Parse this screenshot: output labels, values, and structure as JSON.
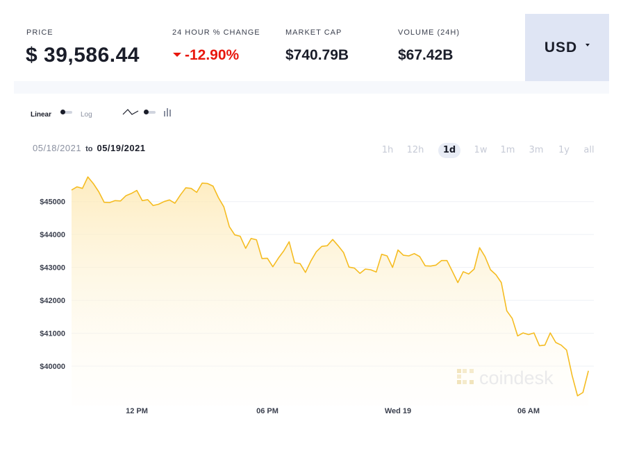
{
  "stats": {
    "price_label": "PRICE",
    "price_value": "$ 39,586.44",
    "change_label": "24 HOUR % CHANGE",
    "change_value": "-12.90%",
    "market_cap_label": "MARKET CAP",
    "market_cap_value": "$740.79B",
    "volume_label": "VOLUME (24H)",
    "volume_value": "$67.42B",
    "currency": "USD"
  },
  "toggles": {
    "scale_linear": "Linear",
    "scale_log": "Log",
    "chart_line_icon": "line-chart-icon",
    "chart_bar_icon": "bar-chart-icon"
  },
  "date_range": {
    "from": "05/18/2021",
    "to_word": "to",
    "to": "05/19/2021"
  },
  "periods": [
    "1h",
    "12h",
    "1d",
    "1w",
    "1m",
    "3m",
    "1y",
    "all"
  ],
  "active_period": "1d",
  "colors": {
    "accent": "#f5bc21",
    "negative": "#e8170d",
    "currency_bg": "#dfe5f4"
  },
  "watermark": "coindesk",
  "chart_data": {
    "type": "area",
    "title": "",
    "xlabel": "",
    "ylabel": "",
    "x_tick_labels": [
      "12 PM",
      "06 PM",
      "Wed 19",
      "06 AM"
    ],
    "y_tick_labels": [
      "$40000",
      "$41000",
      "$42000",
      "$43000",
      "$44000",
      "$45000"
    ],
    "y_ticks": [
      40000,
      41000,
      42000,
      43000,
      44000,
      45000
    ],
    "x_range_hours": [
      0,
      24
    ],
    "x_tick_hours": [
      3,
      9,
      15,
      21
    ],
    "ylim": [
      38800,
      45900
    ],
    "grid": true,
    "series": [
      {
        "x": [
          0,
          0.25,
          0.5,
          0.75,
          1,
          1.25,
          1.5,
          1.75,
          2,
          2.25,
          2.5,
          2.75,
          3,
          3.25,
          3.5,
          3.75,
          4,
          4.25,
          4.5,
          4.75,
          5,
          5.25,
          5.5,
          5.75,
          6,
          6.25,
          6.5,
          6.75,
          7,
          7.25,
          7.5,
          7.75,
          8,
          8.25,
          8.5,
          8.75,
          9,
          9.25,
          9.5,
          9.75,
          10,
          10.25,
          10.5,
          10.75,
          11,
          11.25,
          11.5,
          11.75,
          12,
          12.25,
          12.5,
          12.75,
          13,
          13.25,
          13.5,
          13.75,
          14,
          14.25,
          14.5,
          14.75,
          15,
          15.25,
          15.5,
          15.75,
          16,
          16.25,
          16.5,
          16.75,
          17,
          17.25,
          17.5,
          17.75,
          18,
          18.25,
          18.5,
          18.75,
          19,
          19.25,
          19.5,
          19.75,
          20,
          20.25,
          20.5,
          20.75,
          21,
          21.25,
          21.5,
          21.75,
          22,
          22.25,
          22.5,
          22.75,
          23,
          23.25,
          23.5,
          23.75
        ],
        "values": [
          45350,
          45450,
          45400,
          45750,
          45550,
          45300,
          44980,
          44970,
          45030,
          45020,
          45180,
          45250,
          45340,
          45030,
          45060,
          44880,
          44920,
          45000,
          45050,
          44950,
          45200,
          45420,
          45400,
          45280,
          45560,
          45550,
          45470,
          45120,
          44840,
          44240,
          43990,
          43950,
          43580,
          43880,
          43840,
          43270,
          43280,
          43020,
          43280,
          43500,
          43780,
          43140,
          43120,
          42850,
          43200,
          43480,
          43640,
          43660,
          43850,
          43660,
          43450,
          43010,
          42980,
          42820,
          42950,
          42930,
          42860,
          43400,
          43350,
          43000,
          43530,
          43370,
          43350,
          43420,
          43330,
          43050,
          43040,
          43070,
          43210,
          43210,
          42880,
          42540,
          42870,
          42800,
          42950,
          43600,
          43330,
          42930,
          42780,
          42540,
          41680,
          41450,
          40920,
          41010,
          40960,
          41010,
          40620,
          40640,
          41010,
          40720,
          40640,
          40490,
          39720,
          39100,
          39200,
          39860
        ]
      }
    ]
  }
}
